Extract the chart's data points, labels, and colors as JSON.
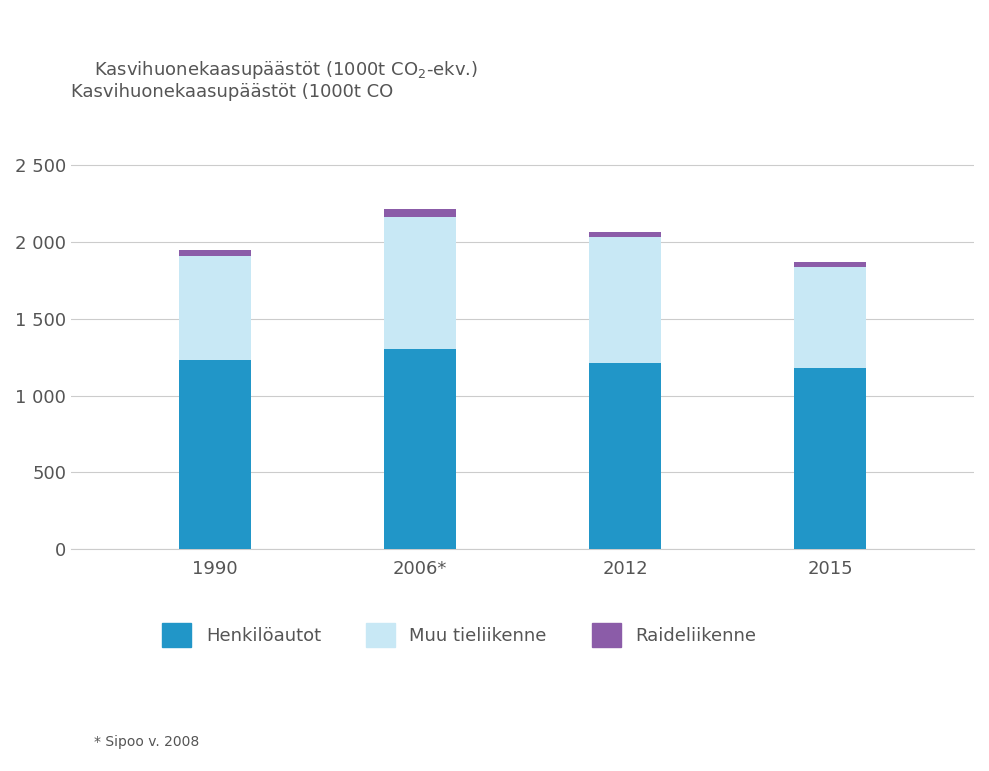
{
  "title_part1": "Kasvihuonekaasupäästöt (1000t CO ",
  "title_sub": "2",
  "title_part2": "-ekv.)",
  "categories": [
    "1990",
    "2006*",
    "2012",
    "2015"
  ],
  "henkiloautot": [
    1230,
    1300,
    1210,
    1180
  ],
  "muu_tieliikenne": [
    680,
    860,
    820,
    660
  ],
  "raideliikenne": [
    35,
    55,
    35,
    30
  ],
  "color_henkiloautot": "#2196C8",
  "color_muu_tieliikenne": "#C8E8F5",
  "color_raideliikenne": "#8B5CA8",
  "ylim": [
    0,
    2700
  ],
  "yticks": [
    0,
    500,
    1000,
    1500,
    2000,
    2500
  ],
  "ytick_labels": [
    "0",
    "500",
    "1 000",
    "1 500",
    "2 000",
    "2 500"
  ],
  "ylabel": "",
  "xlabel": "",
  "footnote": "* Sipoo v. 2008",
  "legend_labels": [
    "Henkilöautot",
    "Muu tieliikenne",
    "Raideliikenne"
  ],
  "bar_width": 0.35,
  "background_color": "#ffffff",
  "text_color": "#555555",
  "grid_color": "#cccccc"
}
